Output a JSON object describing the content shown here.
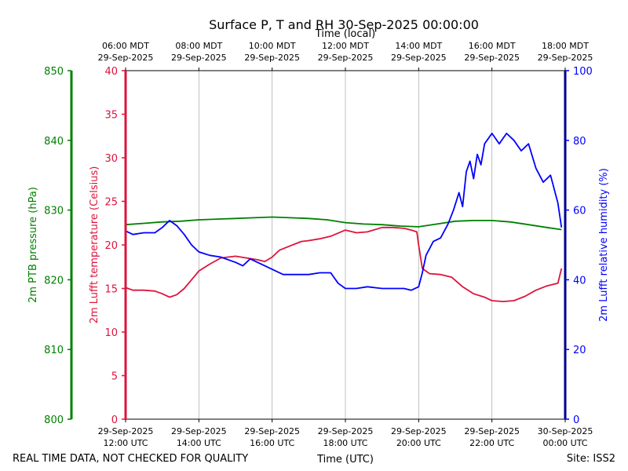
{
  "chart_data": {
    "type": "line",
    "title": "Surface P, T and RH 30-Sep-2025 00:00:00",
    "xlabel_bottom": "Time (UTC)",
    "xlabel_top": "Time (local)",
    "footer_left": "REAL TIME DATA, NOT CHECKED FOR QUALITY",
    "footer_right": "Site: ISS2",
    "xlim_hours": [
      12,
      24
    ],
    "x_ticks_bottom": [
      {
        "hour": 12,
        "date": "29-Sep-2025",
        "time": "12:00 UTC"
      },
      {
        "hour": 14,
        "date": "29-Sep-2025",
        "time": "14:00 UTC"
      },
      {
        "hour": 16,
        "date": "29-Sep-2025",
        "time": "16:00 UTC"
      },
      {
        "hour": 18,
        "date": "29-Sep-2025",
        "time": "18:00 UTC"
      },
      {
        "hour": 20,
        "date": "29-Sep-2025",
        "time": "20:00 UTC"
      },
      {
        "hour": 22,
        "date": "29-Sep-2025",
        "time": "22:00 UTC"
      },
      {
        "hour": 24,
        "date": "30-Sep-2025",
        "time": "00:00 UTC"
      }
    ],
    "x_ticks_top": [
      {
        "hour": 12,
        "time": "06:00 MDT",
        "date": "29-Sep-2025"
      },
      {
        "hour": 14,
        "time": "08:00 MDT",
        "date": "29-Sep-2025"
      },
      {
        "hour": 16,
        "time": "10:00 MDT",
        "date": "29-Sep-2025"
      },
      {
        "hour": 18,
        "time": "12:00 MDT",
        "date": "29-Sep-2025"
      },
      {
        "hour": 20,
        "time": "14:00 MDT",
        "date": "29-Sep-2025"
      },
      {
        "hour": 22,
        "time": "16:00 MDT",
        "date": "29-Sep-2025"
      },
      {
        "hour": 24,
        "time": "18:00 MDT",
        "date": "29-Sep-2025"
      }
    ],
    "axes": {
      "pressure": {
        "label": "2m PTB pressure (hPa)",
        "ylim": [
          800,
          850
        ],
        "ticks": [
          800,
          810,
          820,
          830,
          840,
          850
        ],
        "color": "#008000"
      },
      "temperature": {
        "label": "2m Lufft temperature (Celsius)",
        "ylim": [
          0,
          40
        ],
        "ticks": [
          0,
          5,
          10,
          15,
          20,
          25,
          30,
          35,
          40
        ],
        "color": "#dc143c"
      },
      "humidity": {
        "label": "2m Lufft relative humidity (%)",
        "ylim": [
          0,
          100
        ],
        "ticks": [
          0,
          20,
          40,
          60,
          80,
          100
        ],
        "color": "#0000ff"
      }
    },
    "series": [
      {
        "name": "pressure",
        "axis": "pressure",
        "color": "#008000",
        "x": [
          12.0,
          12.5,
          13.0,
          13.5,
          14.0,
          14.5,
          15.0,
          15.5,
          16.0,
          16.5,
          17.0,
          17.5,
          18.0,
          18.5,
          19.0,
          19.5,
          20.0,
          20.5,
          21.0,
          21.5,
          22.0,
          22.5,
          23.0,
          23.5,
          23.9
        ],
        "values": [
          827.9,
          828.1,
          828.3,
          828.4,
          828.6,
          828.7,
          828.8,
          828.9,
          829.0,
          828.9,
          828.8,
          828.6,
          828.2,
          828.0,
          827.9,
          827.7,
          827.6,
          828.0,
          828.4,
          828.5,
          828.5,
          828.3,
          827.9,
          827.5,
          827.2
        ]
      },
      {
        "name": "temperature",
        "axis": "temperature",
        "color": "#dc143c",
        "x": [
          12.0,
          12.2,
          12.5,
          12.8,
          13.0,
          13.2,
          13.4,
          13.6,
          13.8,
          14.0,
          14.3,
          14.6,
          15.0,
          15.3,
          15.6,
          15.8,
          16.0,
          16.2,
          16.5,
          16.8,
          17.0,
          17.3,
          17.6,
          18.0,
          18.3,
          18.6,
          19.0,
          19.3,
          19.6,
          19.8,
          19.95,
          20.0,
          20.1,
          20.3,
          20.6,
          20.9,
          21.2,
          21.5,
          21.8,
          22.0,
          22.3,
          22.6,
          22.9,
          23.2,
          23.5,
          23.8,
          23.9
        ],
        "values": [
          15.1,
          14.8,
          14.8,
          14.7,
          14.4,
          14.0,
          14.3,
          15.0,
          16.0,
          17.0,
          17.8,
          18.5,
          18.7,
          18.5,
          18.3,
          18.1,
          18.6,
          19.4,
          19.9,
          20.4,
          20.5,
          20.7,
          21.0,
          21.7,
          21.4,
          21.5,
          22.0,
          22.0,
          21.9,
          21.7,
          21.5,
          20.0,
          17.3,
          16.7,
          16.6,
          16.3,
          15.2,
          14.4,
          14.0,
          13.6,
          13.5,
          13.6,
          14.1,
          14.8,
          15.3,
          15.6,
          17.3
        ]
      },
      {
        "name": "humidity",
        "axis": "humidity",
        "color": "#0000ff",
        "x": [
          12.0,
          12.2,
          12.5,
          12.8,
          13.0,
          13.2,
          13.4,
          13.6,
          13.8,
          14.0,
          14.3,
          14.6,
          15.0,
          15.2,
          15.4,
          15.6,
          15.8,
          16.0,
          16.3,
          16.6,
          17.0,
          17.3,
          17.6,
          17.8,
          18.0,
          18.3,
          18.6,
          19.0,
          19.3,
          19.6,
          19.8,
          20.0,
          20.1,
          20.2,
          20.4,
          20.6,
          20.8,
          20.95,
          21.1,
          21.2,
          21.3,
          21.4,
          21.5,
          21.6,
          21.7,
          21.8,
          22.0,
          22.2,
          22.4,
          22.6,
          22.8,
          23.0,
          23.2,
          23.4,
          23.6,
          23.8,
          23.9
        ],
        "values": [
          54.0,
          53.0,
          53.5,
          53.5,
          55.0,
          57.0,
          55.5,
          53.0,
          50.0,
          48.0,
          47.0,
          46.5,
          45.0,
          44.0,
          46.0,
          45.0,
          44.0,
          43.0,
          41.5,
          41.5,
          41.5,
          42.0,
          42.0,
          39.0,
          37.5,
          37.5,
          38.0,
          37.5,
          37.5,
          37.5,
          37.0,
          38.0,
          42.0,
          47.0,
          51.0,
          52.0,
          56.0,
          60.0,
          65.0,
          61.0,
          71.0,
          74.0,
          69.0,
          76.0,
          73.0,
          79.0,
          82.0,
          79.0,
          82.0,
          80.0,
          77.0,
          79.0,
          72.0,
          68.0,
          70.0,
          62.0,
          55.0
        ]
      }
    ]
  }
}
